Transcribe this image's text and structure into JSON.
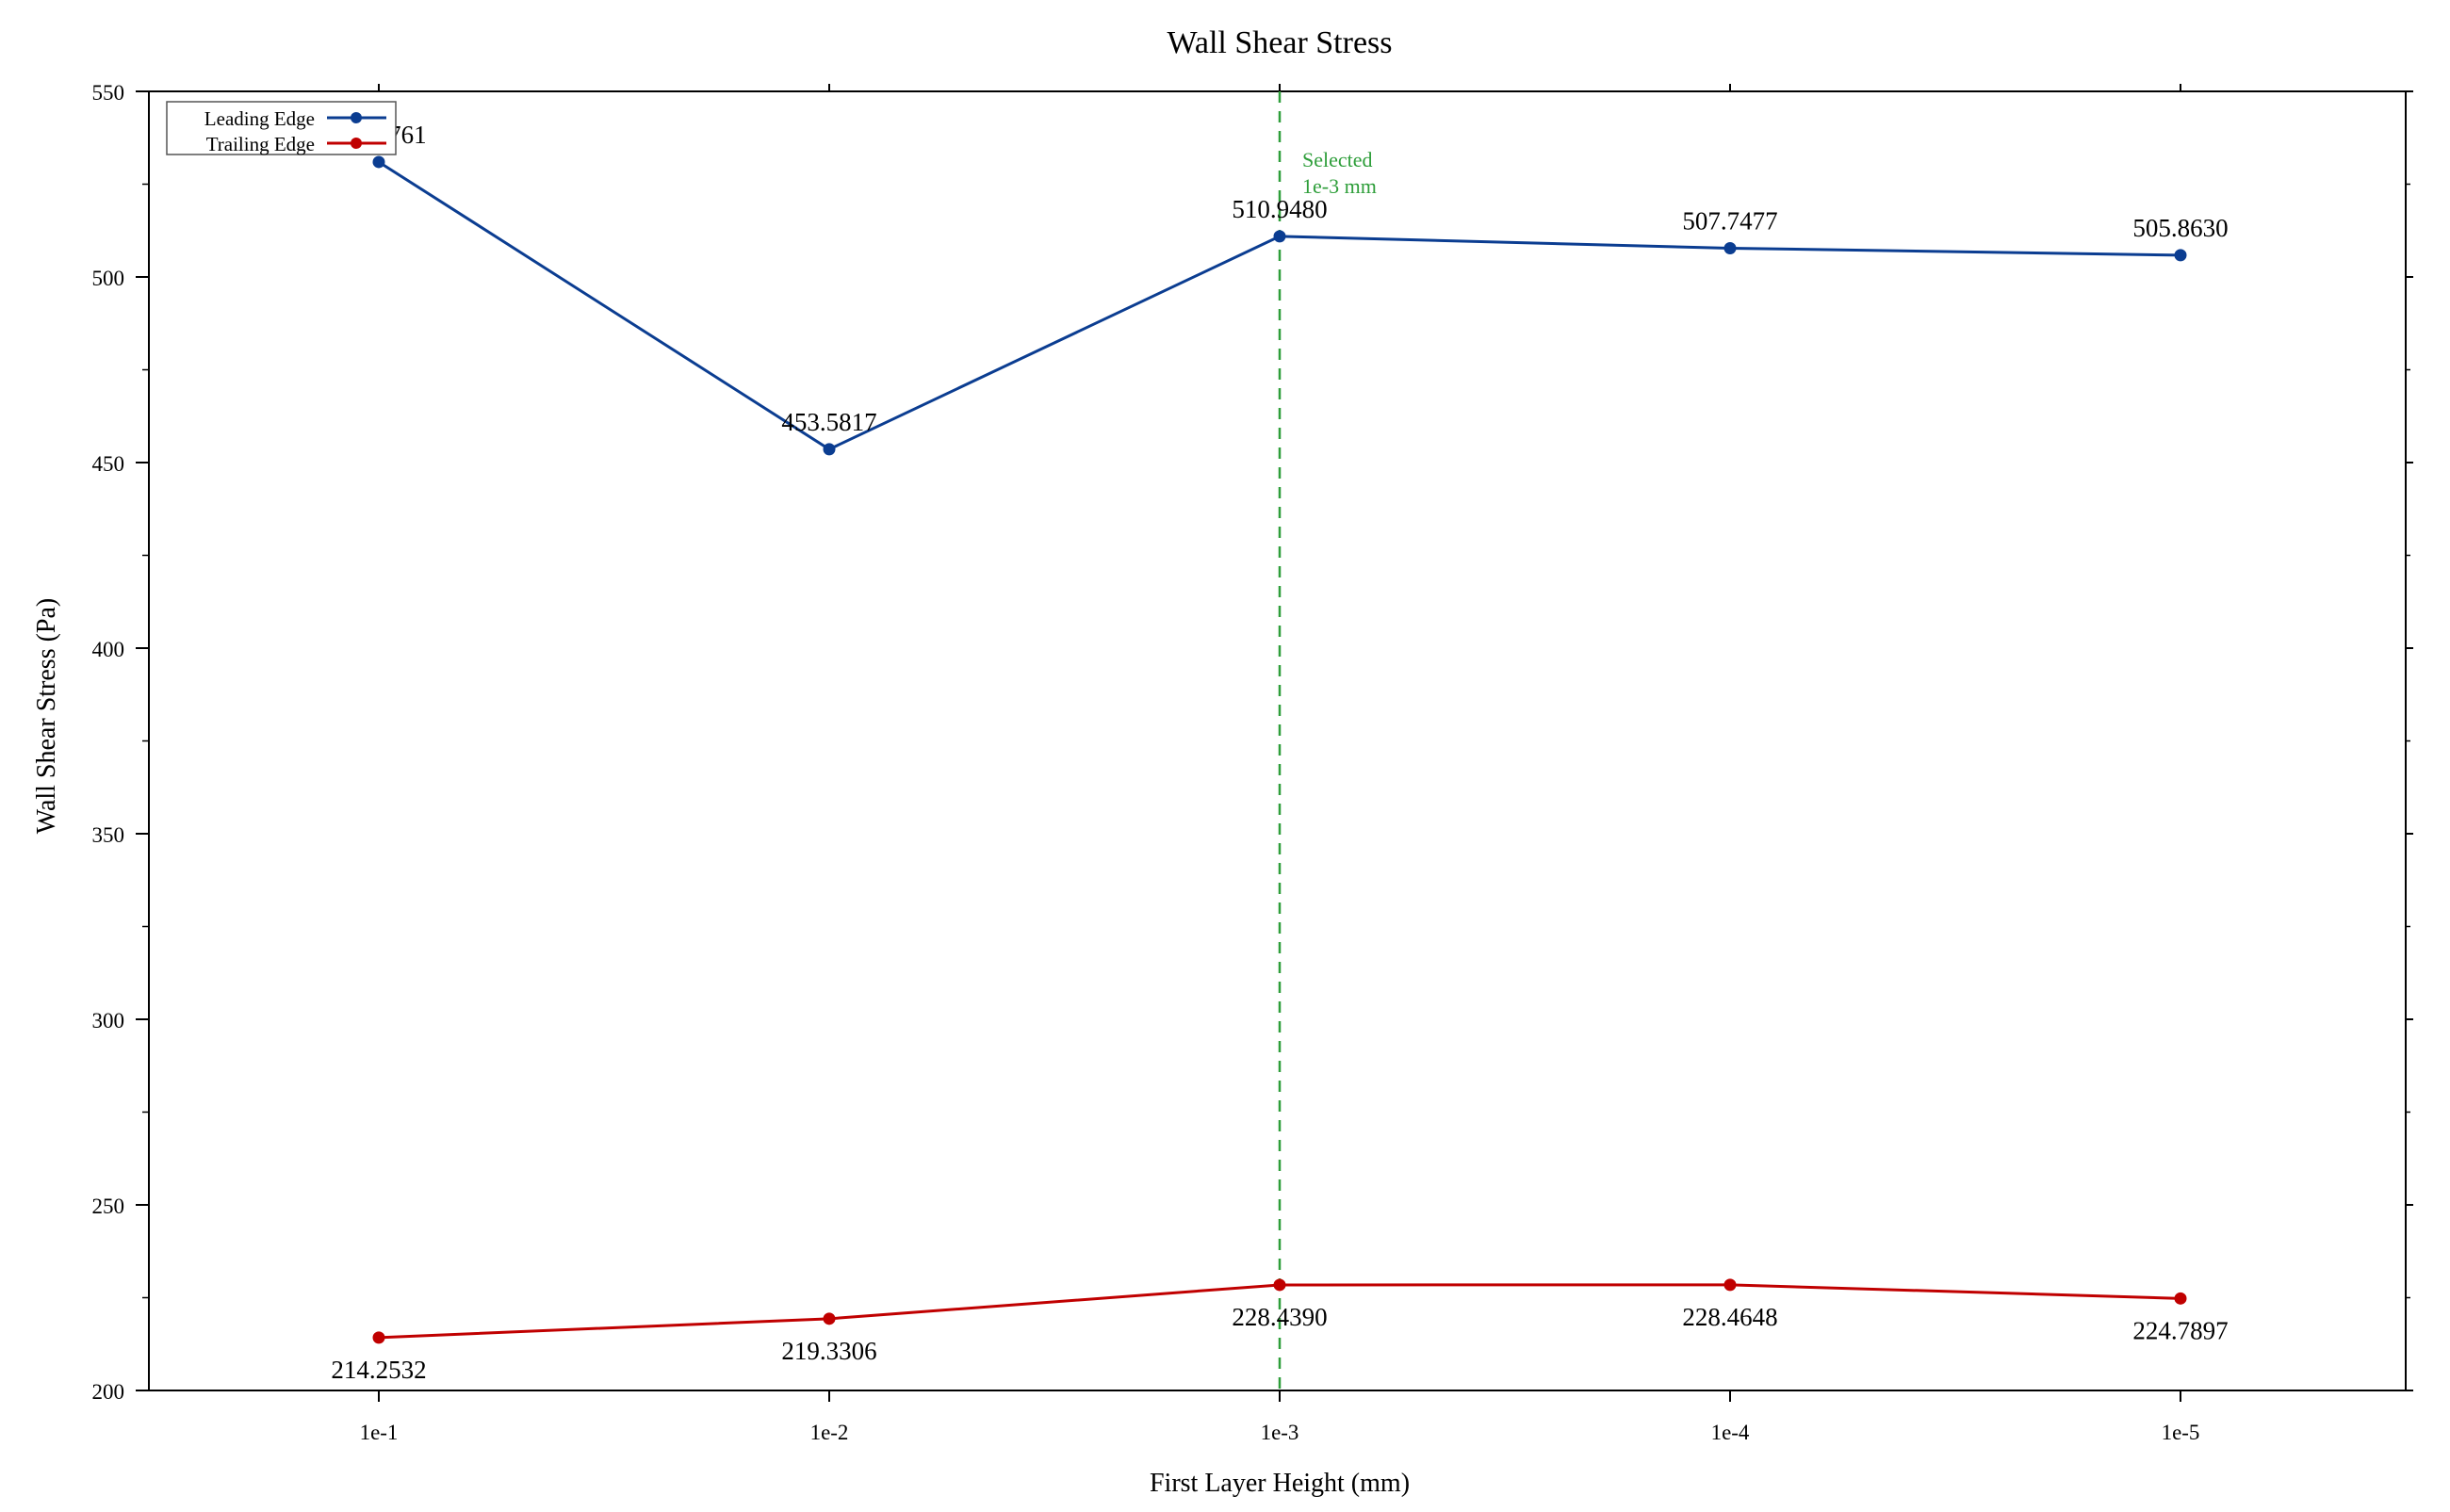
{
  "chart_data": {
    "type": "line",
    "title": "Wall Shear Stress",
    "xlabel": "First Layer Height (mm)",
    "ylabel": "Wall Shear Stress (Pa)",
    "categories": [
      "1e-1",
      "1e-2",
      "1e-3",
      "1e-4",
      "1e-5"
    ],
    "ylim": [
      200,
      550
    ],
    "yticks": [
      200,
      250,
      300,
      350,
      400,
      450,
      500,
      550
    ],
    "grid": false,
    "legend_position": "top-left",
    "series": [
      {
        "name": "Leading Edge",
        "color": "#0b3d91",
        "values": [
          530.9761,
          453.5817,
          510.948,
          507.7477,
          505.863
        ],
        "labels": [
          "530.9761",
          "453.5817",
          "510.9480",
          "507.7477",
          "505.8630"
        ],
        "label_position": "above"
      },
      {
        "name": "Trailing Edge",
        "color": "#c00000",
        "values": [
          214.2532,
          219.3306,
          228.439,
          228.4648,
          224.7897
        ],
        "labels": [
          "214.2532",
          "219.3306",
          "228.4390",
          "228.4648",
          "224.7897"
        ],
        "label_position": "below"
      }
    ],
    "annotations": [
      {
        "type": "vertical-line",
        "x": "1e-3",
        "color": "#2e9e3a",
        "style": "dashed",
        "text_lines": [
          "Selected",
          "1e-3 mm"
        ]
      }
    ]
  }
}
